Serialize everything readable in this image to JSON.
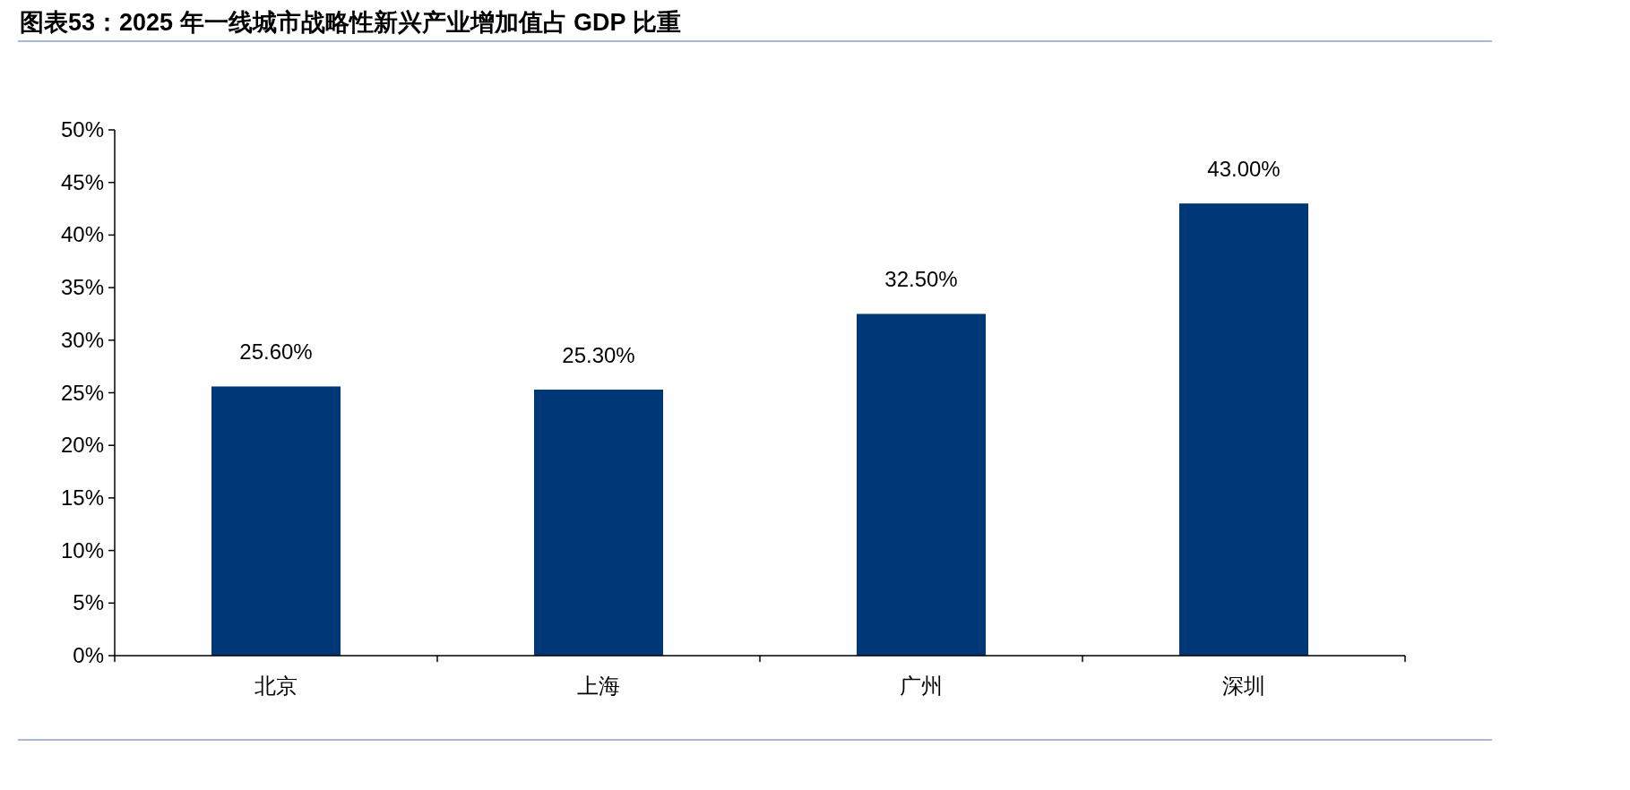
{
  "chart_data": {
    "type": "bar",
    "title": "图表53：2025 年一线城市战略性新兴产业增加值占 GDP 比重",
    "categories": [
      "北京",
      "上海",
      "广州",
      "深圳"
    ],
    "values": [
      25.6,
      25.3,
      32.5,
      43.0
    ],
    "value_labels": [
      "25.60%",
      "25.30%",
      "32.50%",
      "43.00%"
    ],
    "color": "#003776",
    "ylim": [
      0,
      50
    ],
    "yticks": [
      {
        "value": 0,
        "label": "0%"
      },
      {
        "value": 5,
        "label": "5%"
      },
      {
        "value": 10,
        "label": "10%"
      },
      {
        "value": 15,
        "label": "15%"
      },
      {
        "value": 20,
        "label": "20%"
      },
      {
        "value": 25,
        "label": "25%"
      },
      {
        "value": 30,
        "label": "30%"
      },
      {
        "value": 35,
        "label": "35%"
      },
      {
        "value": 40,
        "label": "40%"
      },
      {
        "value": 45,
        "label": "45%"
      },
      {
        "value": 50,
        "label": "50%"
      }
    ],
    "grid": false
  }
}
